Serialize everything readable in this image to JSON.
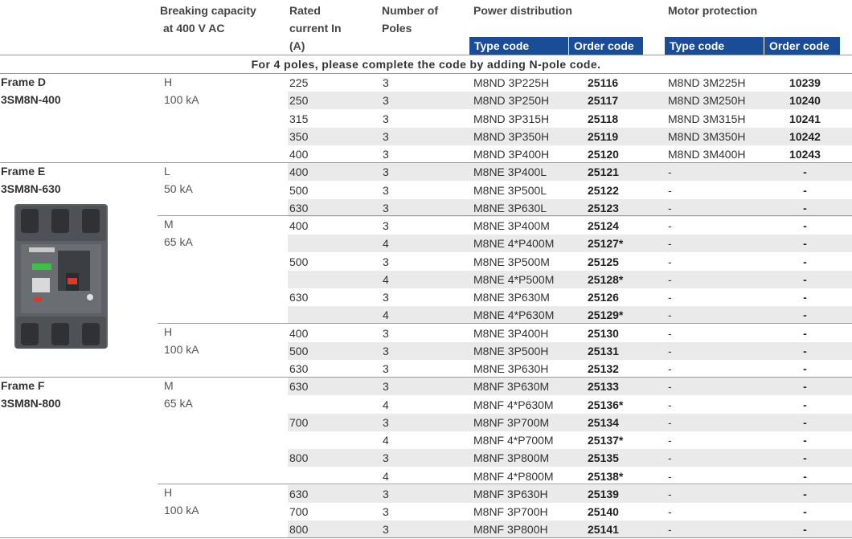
{
  "header": {
    "breaking_line1": "Breaking capacity",
    "breaking_line2": "at 400 V AC",
    "rated_line1": "Rated",
    "rated_line2": "current In",
    "rated_line3": "(A)",
    "poles_line1": "Number of",
    "poles_line2": "Poles",
    "power_distribution": "Power distribution",
    "motor_protection": "Motor protection",
    "type_code": "Type code",
    "order_code": "Order code"
  },
  "note": "For 4 poles, please complete the code by adding N-pole code.",
  "frames": [
    {
      "title": "Frame D",
      "model": "3SM8N-400"
    },
    {
      "title": "Frame E",
      "model": "3SM8N-630"
    },
    {
      "title": "Frame F",
      "model": "3SM8N-800"
    }
  ],
  "breaking": [
    {
      "letter": "H",
      "value": "100 kA"
    },
    {
      "letter": "L",
      "value": "50 kA"
    },
    {
      "letter": "M",
      "value": "65 kA"
    },
    {
      "letter": "H",
      "value": "100 kA"
    },
    {
      "letter": "M",
      "value": "65 kA"
    },
    {
      "letter": "H",
      "value": "100 kA"
    }
  ],
  "rows": [
    {
      "rated": "225",
      "poles": "3",
      "ptype": "M8ND 3P225H",
      "porder": "25116",
      "mtype": "M8ND 3M225H",
      "morder": "10239"
    },
    {
      "rated": "250",
      "poles": "3",
      "ptype": "M8ND 3P250H",
      "porder": "25117",
      "mtype": "M8ND 3M250H",
      "morder": "10240"
    },
    {
      "rated": "315",
      "poles": "3",
      "ptype": "M8ND 3P315H",
      "porder": "25118",
      "mtype": "M8ND 3M315H",
      "morder": "10241"
    },
    {
      "rated": "350",
      "poles": "3",
      "ptype": "M8ND 3P350H",
      "porder": "25119",
      "mtype": "M8ND 3M350H",
      "morder": "10242"
    },
    {
      "rated": "400",
      "poles": "3",
      "ptype": "M8ND 3P400H",
      "porder": "25120",
      "mtype": "M8ND 3M400H",
      "morder": "10243"
    },
    {
      "rated": "400",
      "poles": "3",
      "ptype": "M8NE 3P400L",
      "porder": "25121",
      "mtype": "-",
      "morder": "-"
    },
    {
      "rated": "500",
      "poles": "3",
      "ptype": "M8NE 3P500L",
      "porder": "25122",
      "mtype": "-",
      "morder": "-"
    },
    {
      "rated": "630",
      "poles": "3",
      "ptype": "M8NE 3P630L",
      "porder": "25123",
      "mtype": "-",
      "morder": "-"
    },
    {
      "rated": "400",
      "poles": "3",
      "ptype": "M8NE 3P400M",
      "porder": "25124",
      "mtype": "-",
      "morder": "-"
    },
    {
      "rated": "",
      "poles": "4",
      "ptype": "M8NE 4*P400M",
      "porder": "25127*",
      "mtype": "-",
      "morder": "-"
    },
    {
      "rated": "500",
      "poles": "3",
      "ptype": "M8NE 3P500M",
      "porder": "25125",
      "mtype": "-",
      "morder": "-"
    },
    {
      "rated": "",
      "poles": "4",
      "ptype": "M8NE 4*P500M",
      "porder": "25128*",
      "mtype": "-",
      "morder": "-"
    },
    {
      "rated": "630",
      "poles": "3",
      "ptype": "M8NE 3P630M",
      "porder": "25126",
      "mtype": "-",
      "morder": "-"
    },
    {
      "rated": "",
      "poles": "4",
      "ptype": "M8NE 4*P630M",
      "porder": "25129*",
      "mtype": "-",
      "morder": "-"
    },
    {
      "rated": "400",
      "poles": "3",
      "ptype": "M8NE 3P400H",
      "porder": "25130",
      "mtype": "-",
      "morder": "-"
    },
    {
      "rated": "500",
      "poles": "3",
      "ptype": "M8NE 3P500H",
      "porder": "25131",
      "mtype": "-",
      "morder": "-"
    },
    {
      "rated": "630",
      "poles": "3",
      "ptype": "M8NE 3P630H",
      "porder": "25132",
      "mtype": "-",
      "morder": "-"
    },
    {
      "rated": "630",
      "poles": "3",
      "ptype": "M8NF 3P630M",
      "porder": "25133",
      "mtype": "-",
      "morder": "-"
    },
    {
      "rated": "",
      "poles": "4",
      "ptype": "M8NF 4*P630M",
      "porder": "25136*",
      "mtype": "-",
      "morder": "-"
    },
    {
      "rated": "700",
      "poles": "3",
      "ptype": "M8NF 3P700M",
      "porder": "25134",
      "mtype": "-",
      "morder": "-"
    },
    {
      "rated": "",
      "poles": "4",
      "ptype": "M8NF 4*P700M",
      "porder": "25137*",
      "mtype": "-",
      "morder": "-"
    },
    {
      "rated": "800",
      "poles": "3",
      "ptype": "M8NF 3P800M",
      "porder": "25135",
      "mtype": "-",
      "morder": "-"
    },
    {
      "rated": "",
      "poles": "4",
      "ptype": "M8NF 4*P800M",
      "porder": "25138*",
      "mtype": "-",
      "morder": "-"
    },
    {
      "rated": "630",
      "poles": "3",
      "ptype": "M8NF 3P630H",
      "porder": "25139",
      "mtype": "-",
      "morder": "-"
    },
    {
      "rated": "700",
      "poles": "3",
      "ptype": "M8NF 3P700H",
      "porder": "25140",
      "mtype": "-",
      "morder": "-"
    },
    {
      "rated": "800",
      "poles": "3",
      "ptype": "M8NF 3P800H",
      "porder": "25141",
      "mtype": "-",
      "morder": "-"
    }
  ],
  "colors": {
    "header_blue": "#1b4c97",
    "stripe": "#eaeaea",
    "rule": "#999999"
  },
  "icons": {
    "product": "circuit-breaker-photo"
  }
}
